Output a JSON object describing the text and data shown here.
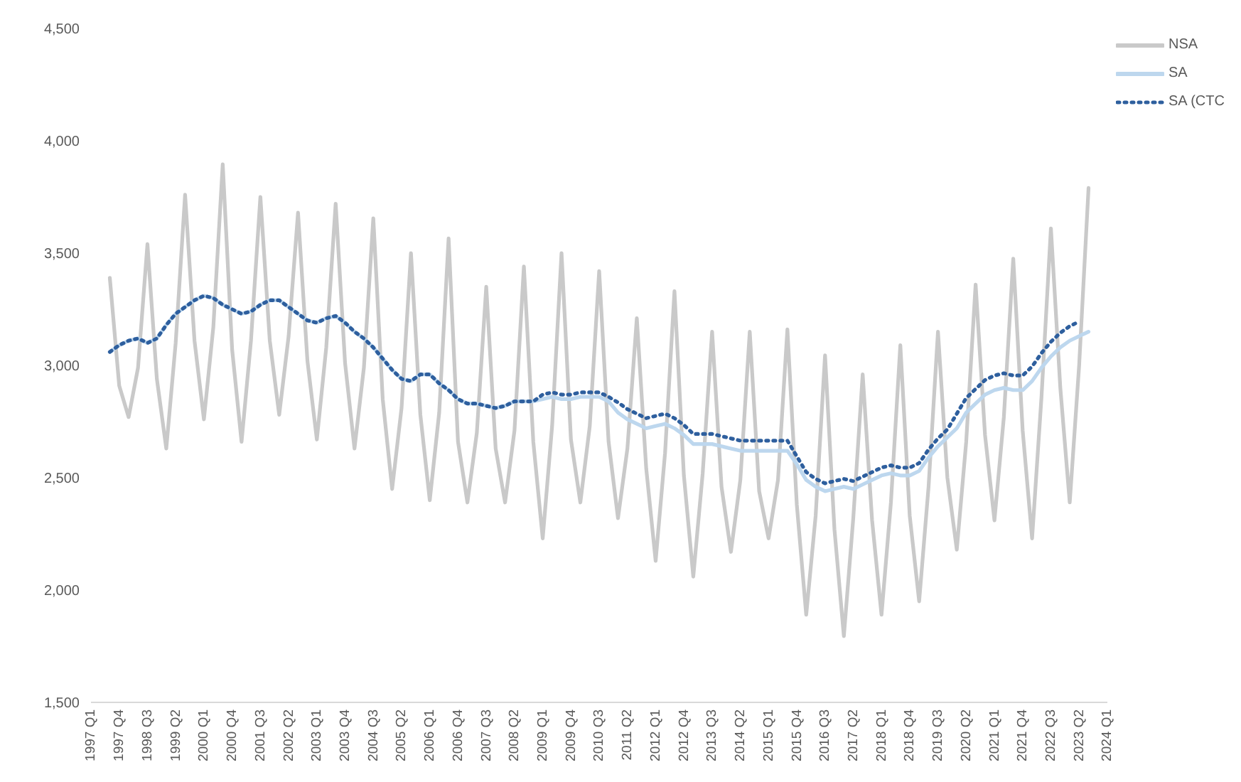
{
  "chart_data": {
    "type": "line",
    "categories": [
      "1997 Q1",
      null,
      null,
      "1997 Q4",
      null,
      null,
      "1998 Q3",
      null,
      null,
      "1999 Q2",
      null,
      null,
      "2000 Q1",
      null,
      null,
      "2000 Q4",
      null,
      null,
      "2001 Q3",
      null,
      null,
      "2002 Q2",
      null,
      null,
      "2003 Q1",
      null,
      null,
      "2003 Q4",
      null,
      null,
      "2004 Q3",
      null,
      null,
      "2005 Q2",
      null,
      null,
      "2006 Q1",
      null,
      null,
      "2006 Q4",
      null,
      null,
      "2007 Q3",
      null,
      null,
      "2008 Q2",
      null,
      null,
      "2009 Q1",
      null,
      null,
      "2009 Q4",
      null,
      null,
      "2010 Q3",
      null,
      null,
      "2011 Q2",
      null,
      null,
      "2012 Q1",
      null,
      null,
      "2012 Q4",
      null,
      null,
      "2013 Q3",
      null,
      null,
      "2014 Q2",
      null,
      null,
      "2015 Q1",
      null,
      null,
      "2015 Q4",
      null,
      null,
      "2016 Q3",
      null,
      null,
      "2017 Q2",
      null,
      null,
      "2018 Q1",
      null,
      null,
      "2018 Q4",
      null,
      null,
      "2019 Q3",
      null,
      null,
      "2020 Q2",
      null,
      null,
      "2021 Q1",
      null,
      null,
      "2021 Q4",
      null,
      null,
      "2022 Q3",
      null,
      null,
      "2023 Q2",
      null,
      null,
      "2024 Q1"
    ],
    "series": [
      {
        "name": "NSA",
        "color": "#c9c9c9",
        "line_style": "solid",
        "values": [
          null,
          null,
          3390,
          2910,
          2770,
          2990,
          3540,
          2940,
          2630,
          3100,
          3760,
          3110,
          2760,
          3170,
          3895,
          3070,
          2660,
          3110,
          3750,
          3110,
          2780,
          3130,
          3680,
          3020,
          2670,
          3080,
          3720,
          3010,
          2630,
          2990,
          3655,
          2850,
          2450,
          2810,
          3500,
          2780,
          2400,
          2790,
          3565,
          2660,
          2390,
          2700,
          3350,
          2630,
          2390,
          2710,
          3440,
          2660,
          2230,
          2730,
          3500,
          2670,
          2390,
          2730,
          3420,
          2660,
          2320,
          2630,
          3210,
          2540,
          2130,
          2610,
          3330,
          2510,
          2060,
          2520,
          3150,
          2460,
          2170,
          2490,
          3150,
          2440,
          2230,
          2490,
          3160,
          2380,
          1890,
          2330,
          3045,
          2270,
          1795,
          2320,
          2960,
          2310,
          1890,
          2390,
          3090,
          2330,
          1950,
          2460,
          3150,
          2500,
          2180,
          2660,
          3360,
          2690,
          2310,
          2770,
          3475,
          2710,
          2230,
          2860,
          3610,
          2900,
          2390,
          3000,
          3790,
          null,
          null
        ]
      },
      {
        "name": "SA",
        "color": "#bdd7ee",
        "line_style": "solid",
        "values": [
          null,
          null,
          3060,
          3090,
          3110,
          3120,
          3100,
          3120,
          3180,
          3230,
          3260,
          3290,
          3310,
          3300,
          3270,
          3250,
          3230,
          3240,
          3270,
          3290,
          3290,
          3260,
          3230,
          3200,
          3190,
          3210,
          3220,
          3190,
          3150,
          3120,
          3080,
          3030,
          2980,
          2940,
          2930,
          2960,
          2960,
          2920,
          2890,
          2850,
          2830,
          2830,
          2820,
          2810,
          2820,
          2840,
          2840,
          2840,
          2850,
          2860,
          2850,
          2850,
          2860,
          2860,
          2860,
          2840,
          2790,
          2760,
          2740,
          2720,
          2730,
          2740,
          2720,
          2690,
          2650,
          2650,
          2650,
          2640,
          2630,
          2620,
          2620,
          2620,
          2620,
          2620,
          2620,
          2560,
          2490,
          2460,
          2440,
          2450,
          2460,
          2450,
          2470,
          2490,
          2510,
          2520,
          2510,
          2510,
          2530,
          2590,
          2640,
          2680,
          2720,
          2790,
          2830,
          2870,
          2890,
          2900,
          2890,
          2890,
          2930,
          2990,
          3040,
          3080,
          3110,
          3130,
          3150,
          null,
          null
        ]
      },
      {
        "name": "SA (CTC",
        "color": "#2e5f9e",
        "line_style": "dotted",
        "values": [
          null,
          null,
          3060,
          3090,
          3110,
          3120,
          3100,
          3120,
          3180,
          3230,
          3260,
          3290,
          3310,
          3300,
          3270,
          3250,
          3230,
          3240,
          3270,
          3290,
          3290,
          3260,
          3230,
          3200,
          3190,
          3210,
          3220,
          3190,
          3150,
          3120,
          3080,
          3030,
          2980,
          2940,
          2930,
          2960,
          2960,
          2920,
          2890,
          2850,
          2830,
          2830,
          2820,
          2810,
          2820,
          2840,
          2840,
          2840,
          2870,
          2880,
          2870,
          2870,
          2880,
          2880,
          2880,
          2860,
          2835,
          2805,
          2785,
          2765,
          2775,
          2785,
          2765,
          2735,
          2695,
          2695,
          2695,
          2685,
          2675,
          2665,
          2665,
          2665,
          2665,
          2665,
          2665,
          2595,
          2525,
          2495,
          2475,
          2485,
          2495,
          2485,
          2505,
          2525,
          2545,
          2555,
          2545,
          2545,
          2565,
          2625,
          2675,
          2715,
          2785,
          2855,
          2895,
          2935,
          2955,
          2965,
          2955,
          2955,
          2995,
          3055,
          3105,
          3145,
          3175,
          3195,
          null,
          null,
          null
        ]
      }
    ],
    "ylim": [
      1500,
      4500
    ],
    "yticks": [
      {
        "value": 1500,
        "label": "1,500"
      },
      {
        "value": 2000,
        "label": "2,000"
      },
      {
        "value": 2500,
        "label": "2,500"
      },
      {
        "value": 3000,
        "label": "3,000"
      },
      {
        "value": 3500,
        "label": "3,500"
      },
      {
        "value": 4000,
        "label": "4,000"
      },
      {
        "value": 4500,
        "label": "4,500"
      }
    ],
    "legend": "top right",
    "marker": "none"
  }
}
